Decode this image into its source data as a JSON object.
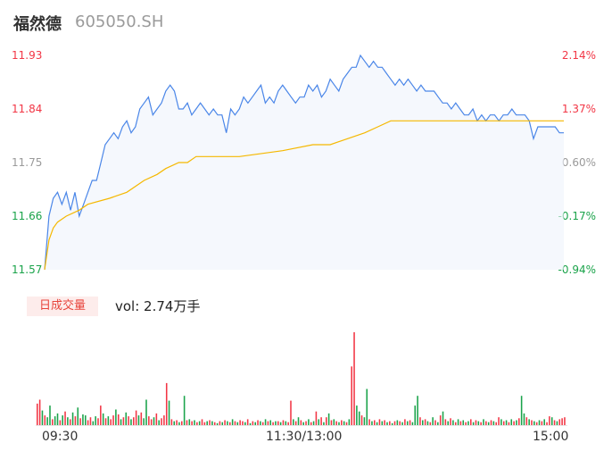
{
  "header": {
    "stock_name": "福然德",
    "stock_code": "605050.SH"
  },
  "colors": {
    "up": "#f23645",
    "down": "#1aa34a",
    "price_line": "#4a86e8",
    "avg_line": "#f5b800",
    "neutral": "#9a9a9a"
  },
  "chart_data": {
    "type": "line",
    "price_axis_labels": [
      "11.93",
      "11.84",
      "11.75",
      "11.66",
      "11.57"
    ],
    "pct_axis_labels": [
      "2.14%",
      "1.37%",
      "0.60%",
      "-0.17%",
      "-0.94%"
    ],
    "ylim": [
      11.57,
      11.93
    ],
    "x_ticks": [
      "09:30",
      "11:30/13:00",
      "15:00"
    ],
    "price_series": {
      "name": "price",
      "x": [
        0,
        2,
        4,
        6,
        8,
        10,
        12,
        14,
        16,
        18,
        20,
        22,
        24,
        26,
        28,
        30,
        32,
        34,
        36,
        38,
        40,
        42,
        44,
        46,
        48,
        50,
        52,
        54,
        56,
        58,
        60,
        62,
        64,
        66,
        68,
        70,
        72,
        74,
        76,
        78,
        80,
        82,
        84,
        86,
        88,
        90,
        92,
        94,
        96,
        98,
        100,
        102,
        104,
        106,
        108,
        110,
        112,
        114,
        116,
        118,
        120,
        122,
        124,
        126,
        128,
        130,
        132,
        134,
        136,
        138,
        140,
        142,
        144,
        146,
        148,
        150,
        152,
        154,
        156,
        158,
        160,
        162,
        164,
        166,
        168,
        170,
        172,
        174,
        176,
        178,
        180,
        182,
        184,
        186,
        188,
        190,
        192,
        194,
        196,
        198,
        200,
        202,
        204,
        206,
        208,
        210,
        212,
        214,
        216,
        218,
        220,
        222,
        224,
        226,
        228,
        230,
        232,
        234,
        236,
        238,
        240
      ],
      "values": [
        11.57,
        11.66,
        11.69,
        11.7,
        11.68,
        11.7,
        11.67,
        11.7,
        11.66,
        11.68,
        11.7,
        11.72,
        11.72,
        11.75,
        11.78,
        11.79,
        11.8,
        11.79,
        11.81,
        11.82,
        11.8,
        11.81,
        11.84,
        11.85,
        11.86,
        11.83,
        11.84,
        11.85,
        11.87,
        11.88,
        11.87,
        11.84,
        11.84,
        11.85,
        11.83,
        11.84,
        11.85,
        11.84,
        11.83,
        11.84,
        11.83,
        11.83,
        11.8,
        11.84,
        11.83,
        11.84,
        11.86,
        11.85,
        11.86,
        11.87,
        11.88,
        11.85,
        11.86,
        11.85,
        11.87,
        11.88,
        11.87,
        11.86,
        11.85,
        11.86,
        11.86,
        11.88,
        11.87,
        11.88,
        11.86,
        11.87,
        11.89,
        11.88,
        11.87,
        11.89,
        11.9,
        11.91,
        11.91,
        11.93,
        11.92,
        11.91,
        11.92,
        11.91,
        11.91,
        11.9,
        11.89,
        11.88,
        11.89,
        11.88,
        11.89,
        11.88,
        11.87,
        11.88,
        11.87,
        11.87,
        11.87,
        11.86,
        11.85,
        11.85,
        11.84,
        11.85,
        11.84,
        11.83,
        11.83,
        11.84,
        11.82,
        11.83,
        11.82,
        11.83,
        11.83,
        11.82,
        11.83,
        11.83,
        11.84,
        11.83,
        11.83,
        11.83,
        11.82,
        11.79,
        11.81,
        11.81,
        11.81,
        11.81,
        11.81,
        11.8,
        11.8
      ]
    },
    "avg_series": {
      "name": "average",
      "x": [
        0,
        2,
        4,
        6,
        10,
        16,
        20,
        30,
        38,
        46,
        52,
        56,
        62,
        66,
        70,
        78,
        90,
        110,
        124,
        132,
        140,
        148,
        154,
        160,
        170,
        180,
        190,
        200,
        210,
        220,
        230,
        240
      ],
      "values": [
        11.57,
        11.62,
        11.64,
        11.65,
        11.66,
        11.67,
        11.68,
        11.69,
        11.7,
        11.72,
        11.73,
        11.74,
        11.75,
        11.75,
        11.76,
        11.76,
        11.76,
        11.77,
        11.78,
        11.78,
        11.79,
        11.8,
        11.81,
        11.82,
        11.82,
        11.82,
        11.82,
        11.82,
        11.82,
        11.82,
        11.82,
        11.82
      ]
    },
    "volume": {
      "label": "日成交量",
      "summary": "vol: 2.74万手",
      "bars": [
        [
          22,
          1
        ],
        [
          26,
          1
        ],
        [
          15,
          0
        ],
        [
          10,
          1
        ],
        [
          8,
          0
        ],
        [
          20,
          0
        ],
        [
          6,
          1
        ],
        [
          9,
          0
        ],
        [
          12,
          0
        ],
        [
          5,
          1
        ],
        [
          10,
          0
        ],
        [
          14,
          1
        ],
        [
          8,
          0
        ],
        [
          6,
          1
        ],
        [
          13,
          0
        ],
        [
          9,
          1
        ],
        [
          18,
          0
        ],
        [
          7,
          1
        ],
        [
          11,
          0
        ],
        [
          10,
          0
        ],
        [
          5,
          1
        ],
        [
          8,
          1
        ],
        [
          4,
          0
        ],
        [
          9,
          0
        ],
        [
          7,
          1
        ],
        [
          20,
          1
        ],
        [
          12,
          0
        ],
        [
          7,
          1
        ],
        [
          9,
          0
        ],
        [
          6,
          1
        ],
        [
          10,
          1
        ],
        [
          16,
          0
        ],
        [
          11,
          1
        ],
        [
          6,
          0
        ],
        [
          8,
          1
        ],
        [
          13,
          0
        ],
        [
          9,
          1
        ],
        [
          6,
          0
        ],
        [
          8,
          1
        ],
        [
          15,
          1
        ],
        [
          10,
          0
        ],
        [
          13,
          1
        ],
        [
          7,
          0
        ],
        [
          26,
          0
        ],
        [
          9,
          1
        ],
        [
          6,
          1
        ],
        [
          8,
          0
        ],
        [
          12,
          1
        ],
        [
          5,
          0
        ],
        [
          7,
          1
        ],
        [
          10,
          1
        ],
        [
          43,
          1
        ],
        [
          25,
          0
        ],
        [
          6,
          1
        ],
        [
          4,
          0
        ],
        [
          5,
          1
        ],
        [
          3,
          0
        ],
        [
          4,
          1
        ],
        [
          30,
          0
        ],
        [
          5,
          1
        ],
        [
          6,
          0
        ],
        [
          4,
          1
        ],
        [
          5,
          0
        ],
        [
          3,
          1
        ],
        [
          4,
          0
        ],
        [
          6,
          1
        ],
        [
          3,
          1
        ],
        [
          4,
          0
        ],
        [
          5,
          1
        ],
        [
          4,
          0
        ],
        [
          3,
          1
        ],
        [
          2,
          0
        ],
        [
          4,
          1
        ],
        [
          3,
          0
        ],
        [
          5,
          1
        ],
        [
          4,
          0
        ],
        [
          3,
          1
        ],
        [
          6,
          0
        ],
        [
          4,
          1
        ],
        [
          3,
          0
        ],
        [
          5,
          1
        ],
        [
          4,
          1
        ],
        [
          3,
          0
        ],
        [
          6,
          1
        ],
        [
          2,
          0
        ],
        [
          4,
          1
        ],
        [
          3,
          0
        ],
        [
          5,
          1
        ],
        [
          4,
          0
        ],
        [
          3,
          1
        ],
        [
          6,
          0
        ],
        [
          4,
          1
        ],
        [
          5,
          0
        ],
        [
          3,
          1
        ],
        [
          4,
          0
        ],
        [
          4,
          1
        ],
        [
          3,
          0
        ],
        [
          5,
          1
        ],
        [
          4,
          0
        ],
        [
          3,
          1
        ],
        [
          25,
          1
        ],
        [
          6,
          0
        ],
        [
          4,
          1
        ],
        [
          8,
          0
        ],
        [
          5,
          1
        ],
        [
          3,
          0
        ],
        [
          4,
          1
        ],
        [
          6,
          0
        ],
        [
          3,
          1
        ],
        [
          4,
          0
        ],
        [
          14,
          1
        ],
        [
          6,
          0
        ],
        [
          8,
          1
        ],
        [
          3,
          0
        ],
        [
          8,
          1
        ],
        [
          12,
          0
        ],
        [
          5,
          1
        ],
        [
          6,
          0
        ],
        [
          4,
          1
        ],
        [
          3,
          0
        ],
        [
          5,
          1
        ],
        [
          4,
          0
        ],
        [
          3,
          1
        ],
        [
          6,
          0
        ],
        [
          60,
          1
        ],
        [
          95,
          1
        ],
        [
          20,
          0
        ],
        [
          14,
          0
        ],
        [
          10,
          1
        ],
        [
          8,
          0
        ],
        [
          37,
          0
        ],
        [
          6,
          1
        ],
        [
          4,
          0
        ],
        [
          5,
          1
        ],
        [
          3,
          0
        ],
        [
          6,
          1
        ],
        [
          4,
          0
        ],
        [
          5,
          1
        ],
        [
          3,
          0
        ],
        [
          4,
          1
        ],
        [
          2,
          0
        ],
        [
          4,
          1
        ],
        [
          5,
          0
        ],
        [
          4,
          1
        ],
        [
          3,
          0
        ],
        [
          6,
          1
        ],
        [
          4,
          0
        ],
        [
          5,
          1
        ],
        [
          3,
          0
        ],
        [
          20,
          0
        ],
        [
          30,
          0
        ],
        [
          8,
          1
        ],
        [
          5,
          0
        ],
        [
          6,
          1
        ],
        [
          4,
          0
        ],
        [
          3,
          1
        ],
        [
          8,
          0
        ],
        [
          5,
          1
        ],
        [
          3,
          0
        ],
        [
          10,
          1
        ],
        [
          14,
          0
        ],
        [
          6,
          1
        ],
        [
          4,
          0
        ],
        [
          7,
          1
        ],
        [
          5,
          0
        ],
        [
          3,
          1
        ],
        [
          6,
          0
        ],
        [
          4,
          1
        ],
        [
          5,
          0
        ],
        [
          3,
          1
        ],
        [
          4,
          0
        ],
        [
          6,
          1
        ],
        [
          3,
          0
        ],
        [
          5,
          1
        ],
        [
          4,
          0
        ],
        [
          3,
          1
        ],
        [
          6,
          0
        ],
        [
          4,
          1
        ],
        [
          3,
          0
        ],
        [
          5,
          1
        ],
        [
          4,
          0
        ],
        [
          3,
          1
        ],
        [
          8,
          1
        ],
        [
          6,
          0
        ],
        [
          4,
          1
        ],
        [
          5,
          0
        ],
        [
          3,
          1
        ],
        [
          6,
          0
        ],
        [
          4,
          1
        ],
        [
          5,
          0
        ],
        [
          7,
          1
        ],
        [
          30,
          0
        ],
        [
          12,
          0
        ],
        [
          8,
          1
        ],
        [
          6,
          0
        ],
        [
          5,
          1
        ],
        [
          4,
          0
        ],
        [
          3,
          1
        ],
        [
          5,
          0
        ],
        [
          4,
          1
        ],
        [
          6,
          0
        ],
        [
          3,
          1
        ],
        [
          9,
          1
        ],
        [
          8,
          0
        ],
        [
          5,
          1
        ],
        [
          4,
          0
        ],
        [
          6,
          1
        ],
        [
          7,
          1
        ],
        [
          8,
          1
        ]
      ]
    }
  }
}
